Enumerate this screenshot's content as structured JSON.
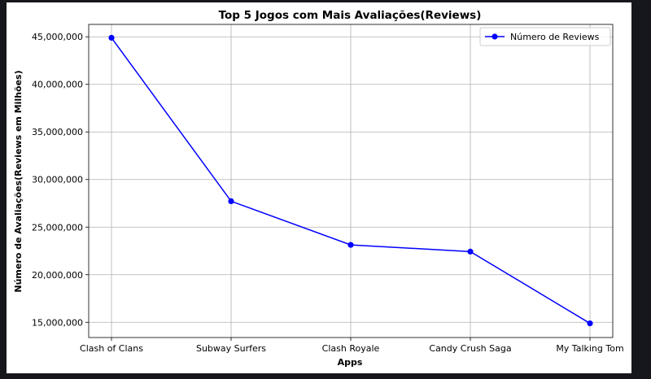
{
  "chart_data": {
    "type": "line",
    "title": "Top 5 Jogos com Mais Avaliações(Reviews)",
    "xlabel": "Apps",
    "ylabel": "Número de Avaliações(Reviews em Milhões)",
    "categories": [
      "Clash of Clans",
      "Subway Surfers",
      "Clash Royale",
      "Candy Crush Saga",
      "My Talking Tom"
    ],
    "series": [
      {
        "name": "Número de Reviews",
        "values": [
          44891723,
          27722264,
          23133508,
          22426677,
          14891223
        ],
        "color": "#0000ff",
        "marker": "circle"
      }
    ],
    "ylim": [
      13400000,
      46300000
    ],
    "yticks": [
      15000000,
      20000000,
      25000000,
      30000000,
      35000000,
      40000000,
      45000000
    ],
    "ytick_labels": [
      "15,000,000",
      "20,000,000",
      "25,000,000",
      "30,000,000",
      "35,000,000",
      "40,000,000",
      "45,000,000"
    ],
    "grid": true,
    "legend_position": "top-right"
  }
}
